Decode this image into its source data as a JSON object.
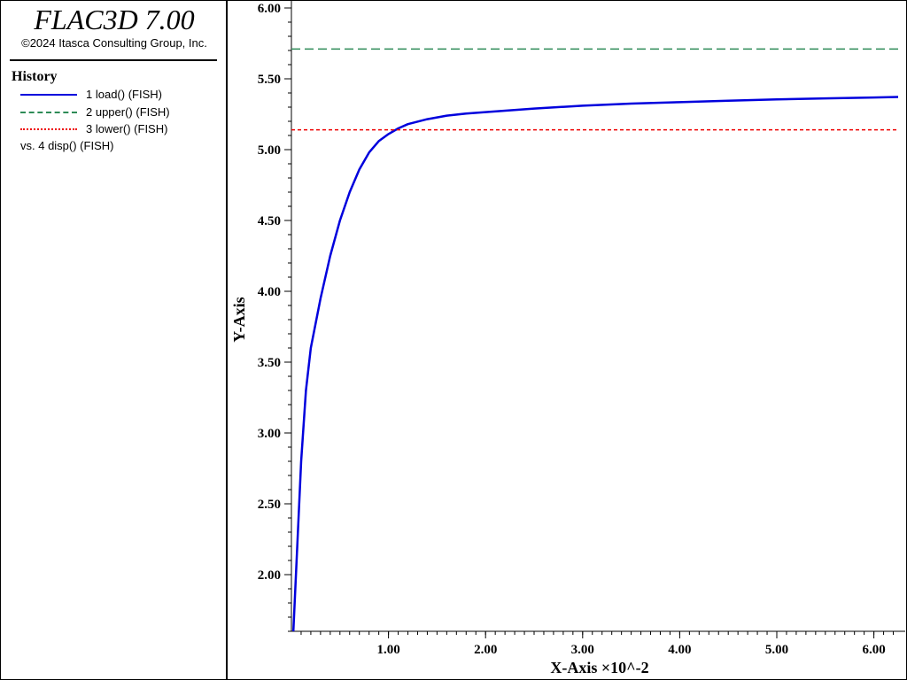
{
  "app": {
    "title": "FLAC3D 7.00",
    "copyright": "©2024 Itasca Consulting Group, Inc."
  },
  "legend": {
    "heading": "History",
    "items": [
      {
        "label": "1 load() (FISH)",
        "color": "#0000dd",
        "style": "solid"
      },
      {
        "label": "2 upper() (FISH)",
        "color": "#2e8b57",
        "style": "dashed"
      },
      {
        "label": "3 lower() (FISH)",
        "color": "#ee0000",
        "style": "dotted"
      }
    ],
    "vs_label": "vs. 4 disp() (FISH)"
  },
  "chart_data": {
    "type": "line",
    "xlabel": "X-Axis ×10^-2",
    "ylabel": "Y-Axis",
    "xlim": [
      0.0,
      6.25
    ],
    "ylim": [
      1.6,
      6.0
    ],
    "x_ticks": [
      1.0,
      2.0,
      3.0,
      4.0,
      5.0,
      6.0
    ],
    "x_tick_labels": [
      "1.00",
      "2.00",
      "3.00",
      "4.00",
      "5.00",
      "6.00"
    ],
    "y_ticks": [
      2.0,
      2.5,
      3.0,
      3.5,
      4.0,
      4.5,
      5.0,
      5.5,
      6.0
    ],
    "y_tick_labels": [
      "2.00",
      "2.50",
      "3.00",
      "3.50",
      "4.00",
      "4.50",
      "5.00",
      "5.50",
      "6.00"
    ],
    "grid": false,
    "series": [
      {
        "name": "1 load() (FISH)",
        "color": "#0000dd",
        "style": "solid",
        "x": [
          0.02,
          0.06,
          0.1,
          0.15,
          0.2,
          0.3,
          0.4,
          0.5,
          0.6,
          0.7,
          0.8,
          0.9,
          1.0,
          1.1,
          1.2,
          1.4,
          1.6,
          1.8,
          2.0,
          2.5,
          3.0,
          3.5,
          4.0,
          4.5,
          5.0,
          5.5,
          6.0,
          6.25
        ],
        "y": [
          1.6,
          2.2,
          2.8,
          3.3,
          3.6,
          3.95,
          4.25,
          4.5,
          4.7,
          4.86,
          4.98,
          5.06,
          5.11,
          5.15,
          5.18,
          5.215,
          5.24,
          5.255,
          5.265,
          5.29,
          5.31,
          5.325,
          5.335,
          5.345,
          5.355,
          5.362,
          5.368,
          5.372
        ]
      },
      {
        "name": "2 upper() (FISH)",
        "color": "#2e8b57",
        "style": "dashed",
        "x": [
          0.0,
          6.25
        ],
        "y": [
          5.71,
          5.71
        ]
      },
      {
        "name": "3 lower() (FISH)",
        "color": "#ee0000",
        "style": "dotted",
        "x": [
          0.0,
          6.25
        ],
        "y": [
          5.14,
          5.14
        ]
      }
    ]
  }
}
